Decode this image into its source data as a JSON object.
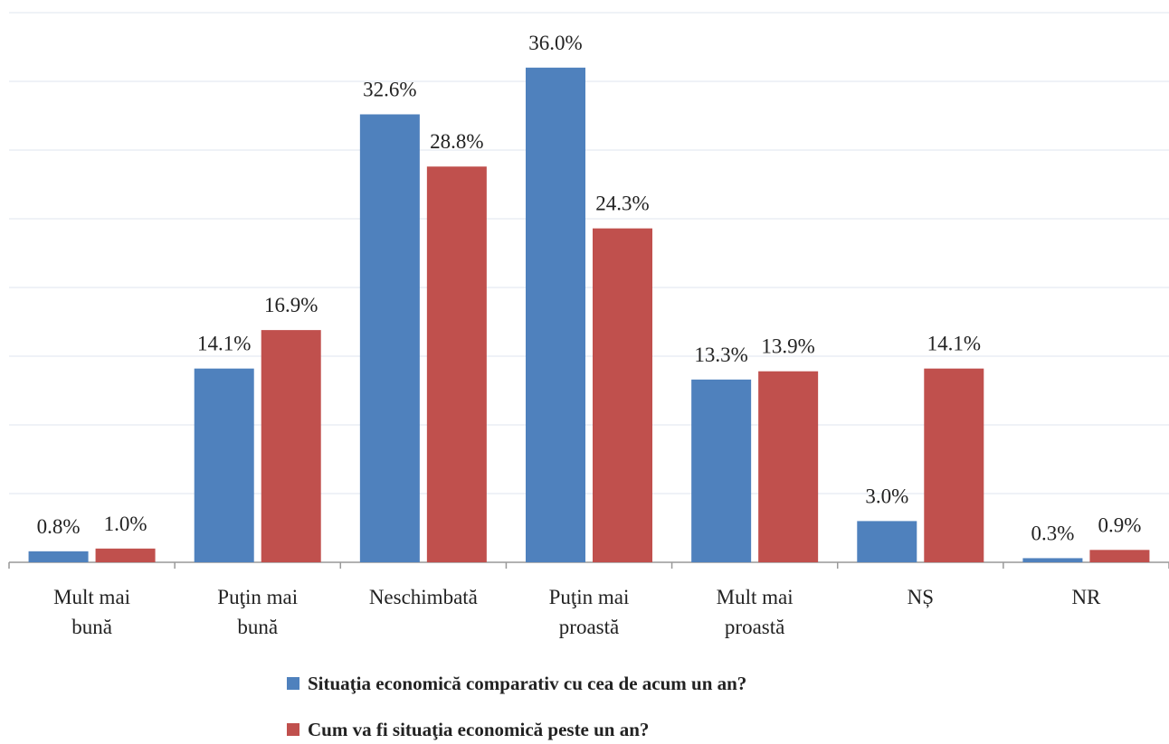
{
  "chart_data": {
    "type": "bar",
    "categories": [
      "Mult mai\nbună",
      "Puţin mai\nbună",
      "Neschimbată",
      "Puţin mai\nproastă",
      "Mult mai\nproastă",
      "NȘ",
      "NR"
    ],
    "series": [
      {
        "name": "Situaţia economică comparativ cu cea de acum un an?",
        "color": "#4f81bd",
        "values": [
          0.8,
          14.1,
          32.6,
          36.0,
          13.3,
          3.0,
          0.3
        ],
        "value_labels": [
          "0.8%",
          "14.1%",
          "32.6%",
          "36.0%",
          "13.3%",
          "3.0%",
          "0.3%"
        ]
      },
      {
        "name": "Cum va fi situaţia economică peste un an?",
        "color": "#c0504d",
        "values": [
          1.0,
          16.9,
          28.8,
          24.3,
          13.9,
          14.1,
          0.9
        ],
        "value_labels": [
          "1.0%",
          "16.9%",
          "28.8%",
          "24.3%",
          "13.9%",
          "14.1%",
          "0.9%"
        ]
      }
    ],
    "ylim": [
      0,
      40
    ],
    "yticks": [
      0,
      5,
      10,
      15,
      20,
      25,
      30,
      35,
      40
    ],
    "grid": true
  }
}
